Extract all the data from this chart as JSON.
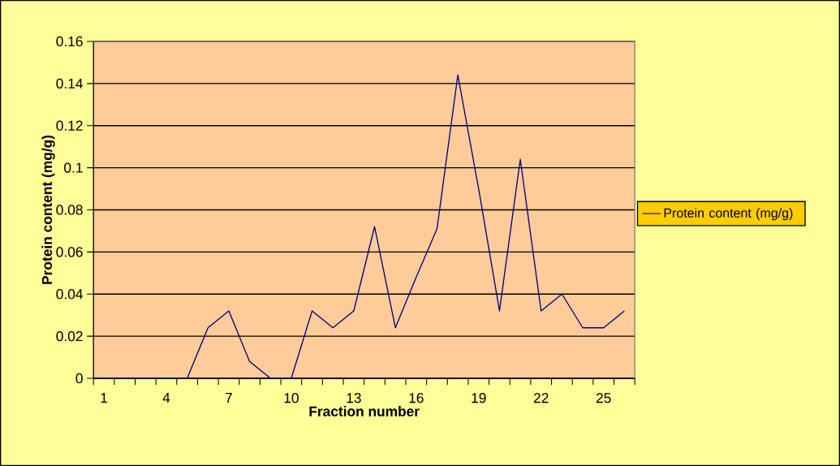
{
  "chart_data": {
    "type": "line",
    "xlabel": "Fraction number",
    "ylabel": "Protein content (mg/g)",
    "categories": [
      "1",
      null,
      null,
      "4",
      null,
      null,
      "7",
      null,
      null,
      "10",
      null,
      null,
      "13",
      null,
      null,
      "16",
      null,
      null,
      "19",
      null,
      null,
      "22",
      null,
      null,
      "25",
      null
    ],
    "series": [
      {
        "name": "Protein content (mg/g)",
        "color": "#000080",
        "values": [
          0,
          0,
          0,
          0,
          0,
          0.024,
          0.032,
          0.008,
          0,
          0,
          0.032,
          0.024,
          0.032,
          0.072,
          0.024,
          0.048,
          0.071,
          0.144,
          0.09,
          0.032,
          0.104,
          0.032,
          0.04,
          0.024,
          0.024,
          0.032
        ]
      }
    ],
    "ylim": [
      0,
      0.16
    ],
    "yticks": [
      0,
      0.02,
      0.04,
      0.06,
      0.08,
      0.1,
      0.12,
      0.14,
      0.16
    ],
    "grid": "y",
    "legend": "right",
    "marker": "none",
    "line_style": "solid"
  }
}
